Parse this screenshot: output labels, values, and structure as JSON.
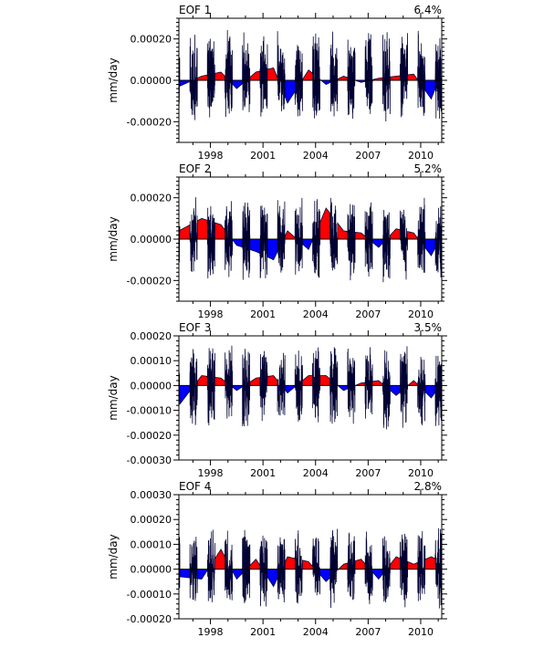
{
  "chart_data": [
    {
      "type": "area",
      "title": "EOF 1",
      "variance_label": "6.4%",
      "ylabel": "mm/day",
      "xlabel": "",
      "xlim": [
        1996.2,
        2011.2
      ],
      "ylim": [
        -0.0003,
        0.0003
      ],
      "yticks": [
        -0.0002,
        0.0,
        0.0002
      ],
      "ytick_labels": [
        "-0.00020",
        "0.00000",
        "0.00020"
      ],
      "xticks": [
        1998,
        2001,
        2004,
        2007,
        2010
      ],
      "xtick_labels": [
        "1998",
        "2001",
        "2004",
        "2007",
        "2010"
      ],
      "positive_color": "#ff0000",
      "negative_color": "#0000ff",
      "line_color": "#000033",
      "seed": 11,
      "amplitude_pos": 0.00025,
      "amplitude_neg": 0.00021,
      "summer_offsets": [
        [
          1996.2,
          -3e-05
        ],
        [
          1997.5,
          2e-05
        ],
        [
          1998.6,
          4e-05
        ],
        [
          1999.5,
          -4e-05
        ],
        [
          2000.6,
          4e-05
        ],
        [
          2001.6,
          6e-05
        ],
        [
          2002.4,
          -0.00011
        ],
        [
          2003.6,
          5e-05
        ],
        [
          2004.6,
          -2e-05
        ],
        [
          2005.6,
          2e-05
        ],
        [
          2006.6,
          -1e-05
        ],
        [
          2007.6,
          1e-05
        ],
        [
          2008.6,
          2e-05
        ],
        [
          2009.6,
          3e-05
        ],
        [
          2010.6,
          -9e-05
        ],
        [
          2011.2,
          4e-05
        ]
      ]
    },
    {
      "type": "area",
      "title": "EOF 2",
      "variance_label": "5.2%",
      "ylabel": "mm/day",
      "xlabel": "",
      "xlim": [
        1996.2,
        2011.2
      ],
      "ylim": [
        -0.0003,
        0.0003
      ],
      "yticks": [
        -0.0002,
        0.0,
        0.0002
      ],
      "ytick_labels": [
        "-0.00020",
        "0.00000",
        "0.00020"
      ],
      "xticks": [
        1998,
        2001,
        2004,
        2007,
        2010
      ],
      "xtick_labels": [
        "1998",
        "2001",
        "2004",
        "2007",
        "2010"
      ],
      "positive_color": "#ff0000",
      "negative_color": "#0000ff",
      "line_color": "#000033",
      "seed": 23,
      "amplitude_pos": 0.00021,
      "amplitude_neg": 0.00022,
      "summer_offsets": [
        [
          1996.2,
          4e-05
        ],
        [
          1997.5,
          0.0001
        ],
        [
          1998.6,
          7e-05
        ],
        [
          1999.5,
          -3e-05
        ],
        [
          2000.6,
          -6e-05
        ],
        [
          2001.6,
          -0.0001
        ],
        [
          2002.4,
          4e-05
        ],
        [
          2003.6,
          -5e-05
        ],
        [
          2004.6,
          0.00015
        ],
        [
          2005.6,
          4e-05
        ],
        [
          2006.6,
          3e-05
        ],
        [
          2007.6,
          -4e-05
        ],
        [
          2008.6,
          5e-05
        ],
        [
          2009.6,
          3e-05
        ],
        [
          2010.6,
          -8e-05
        ],
        [
          2011.2,
          2e-05
        ]
      ]
    },
    {
      "type": "area",
      "title": "EOF 3",
      "variance_label": "3.5%",
      "ylabel": "mm/day",
      "xlabel": "",
      "xlim": [
        1996.2,
        2011.2
      ],
      "ylim": [
        -0.0003,
        0.0002
      ],
      "yticks": [
        -0.0003,
        -0.0002,
        -0.0001,
        0.0,
        0.0001,
        0.0002
      ],
      "ytick_labels": [
        "-0.00030",
        "-0.00020",
        "-0.00010",
        "0.00000",
        "0.00010",
        "0.00020"
      ],
      "xticks": [
        1998,
        2001,
        2004,
        2007,
        2010
      ],
      "xtick_labels": [
        "1998",
        "2001",
        "2004",
        "2007",
        "2010"
      ],
      "positive_color": "#ff0000",
      "negative_color": "#0000ff",
      "line_color": "#000033",
      "seed": 37,
      "amplitude_pos": 0.00017,
      "amplitude_neg": 0.00019,
      "summer_offsets": [
        [
          1996.2,
          -8e-05
        ],
        [
          1997.5,
          4e-05
        ],
        [
          1998.6,
          3e-05
        ],
        [
          1999.5,
          -2e-05
        ],
        [
          2000.6,
          3e-05
        ],
        [
          2001.6,
          4e-05
        ],
        [
          2002.4,
          -3e-05
        ],
        [
          2003.6,
          4e-05
        ],
        [
          2004.6,
          4e-05
        ],
        [
          2005.6,
          -2e-05
        ],
        [
          2006.6,
          1e-05
        ],
        [
          2007.6,
          2e-05
        ],
        [
          2008.6,
          -4e-05
        ],
        [
          2009.6,
          2e-05
        ],
        [
          2010.6,
          -5e-05
        ],
        [
          2011.2,
          1e-05
        ]
      ]
    },
    {
      "type": "area",
      "title": "EOF 4",
      "variance_label": "2.8%",
      "ylabel": "mm/day",
      "xlabel": "",
      "xlim": [
        1996.2,
        2011.2
      ],
      "ylim": [
        -0.0002,
        0.0003
      ],
      "yticks": [
        -0.0002,
        -0.0001,
        0.0,
        0.0001,
        0.0002,
        0.0003
      ],
      "ytick_labels": [
        "-0.00020",
        "-0.00010",
        "0.00000",
        "0.00010",
        "0.00020",
        "0.00030"
      ],
      "xticks": [
        1998,
        2001,
        2004,
        2007,
        2010
      ],
      "xtick_labels": [
        "1998",
        "2001",
        "2004",
        "2007",
        "2010"
      ],
      "positive_color": "#ff0000",
      "negative_color": "#0000ff",
      "line_color": "#000033",
      "seed": 51,
      "amplitude_pos": 0.00017,
      "amplitude_neg": 0.00016,
      "summer_offsets": [
        [
          1996.2,
          -3e-05
        ],
        [
          1997.5,
          -4e-05
        ],
        [
          1998.6,
          8e-05
        ],
        [
          1999.5,
          -4e-05
        ],
        [
          2000.6,
          4e-05
        ],
        [
          2001.6,
          -7e-05
        ],
        [
          2002.4,
          5e-05
        ],
        [
          2003.6,
          3e-05
        ],
        [
          2004.6,
          -5e-05
        ],
        [
          2005.6,
          2e-05
        ],
        [
          2006.6,
          4e-05
        ],
        [
          2007.6,
          -4e-05
        ],
        [
          2008.6,
          5e-05
        ],
        [
          2009.6,
          2e-05
        ],
        [
          2010.6,
          5e-05
        ],
        [
          2011.2,
          3e-05
        ]
      ]
    }
  ]
}
